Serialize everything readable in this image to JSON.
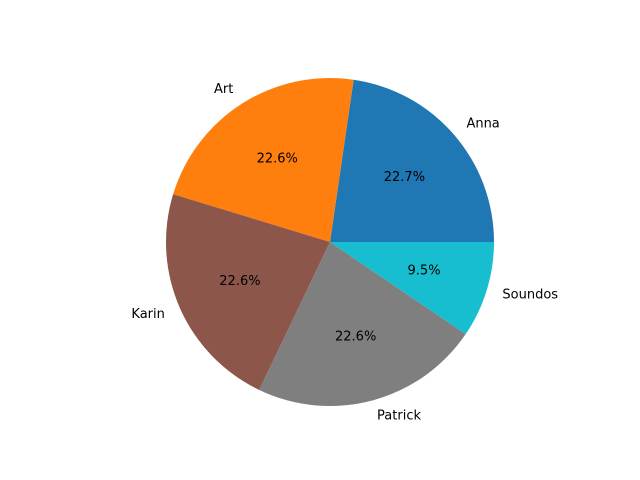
{
  "chart_data": {
    "type": "pie",
    "title": "",
    "start_angle_deg": 0,
    "direction": "counterclockwise",
    "slices": [
      {
        "label": "Anna",
        "value": 22.7,
        "pct_label": "22.7%",
        "color": "#1f77b4"
      },
      {
        "label": "Art",
        "value": 22.6,
        "pct_label": "22.6%",
        "color": "#ff7f0e"
      },
      {
        "label": "Karin",
        "value": 22.6,
        "pct_label": "22.6%",
        "color": "#8c564b"
      },
      {
        "label": "Patrick",
        "value": 22.6,
        "pct_label": "22.6%",
        "color": "#7f7f7f"
      },
      {
        "label": "Soundos",
        "value": 9.5,
        "pct_label": "9.5%",
        "color": "#17becf"
      }
    ]
  }
}
